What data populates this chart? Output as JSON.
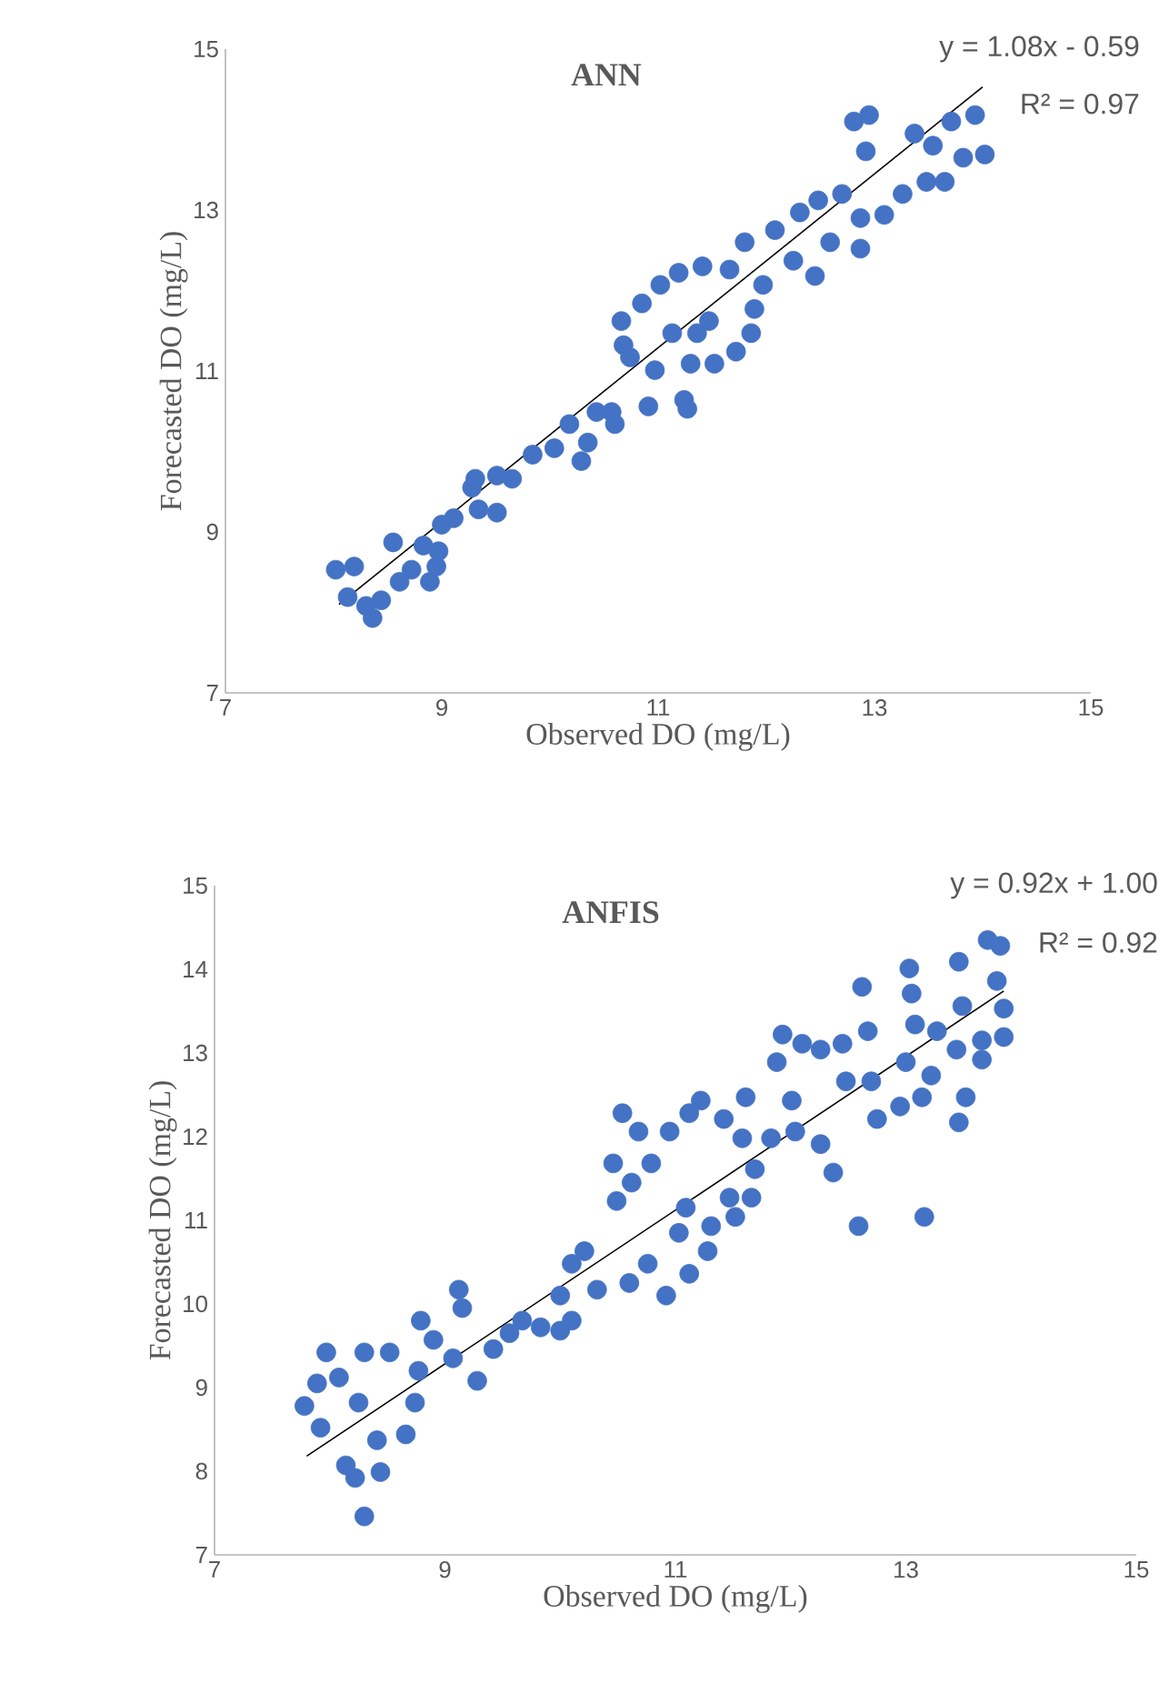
{
  "chart_data": [
    {
      "type": "scatter",
      "title": "ANN",
      "xlabel": "Observed DO (mg/L)",
      "ylabel": "Forecasted DO (mg/L)",
      "annotations": [
        "y = 1.08x - 0.59",
        "R² = 0.97"
      ],
      "xlim": [
        7,
        15
      ],
      "ylim": [
        7,
        15
      ],
      "xticks": [
        7,
        9,
        11,
        13,
        15
      ],
      "yticks": [
        7,
        9,
        11,
        13,
        15
      ],
      "series": [
        {
          "type": "scatter",
          "color": "#4472c4",
          "marker": "circle",
          "x": [
            8.02,
            8.19,
            8.13,
            8.36,
            8.3,
            8.44,
            8.55,
            8.61,
            8.72,
            8.89,
            8.97,
            8.95,
            8.83,
            9.0,
            9.11,
            9.31,
            9.28,
            9.51,
            9.51,
            9.34,
            9.65,
            9.84,
            10.04,
            10.18,
            10.29,
            10.35,
            10.43,
            10.6,
            10.57,
            10.66,
            10.68,
            10.74,
            10.85,
            10.91,
            11.02,
            10.97,
            11.13,
            11.19,
            11.24,
            11.27,
            11.3,
            11.36,
            11.41,
            11.47,
            11.52,
            11.66,
            11.72,
            11.8,
            11.86,
            11.89,
            11.97,
            12.08,
            12.25,
            12.31,
            12.45,
            12.48,
            12.59,
            12.7,
            12.87,
            12.81,
            12.92,
            12.95,
            12.87,
            13.09,
            13.26,
            13.37,
            13.48,
            13.65,
            13.54,
            13.71,
            13.82,
            13.93,
            14.02
          ],
          "values": [
            8.53,
            8.57,
            8.19,
            7.93,
            8.08,
            8.15,
            8.87,
            8.38,
            8.53,
            8.38,
            8.76,
            8.57,
            8.83,
            9.09,
            9.17,
            9.66,
            9.55,
            9.7,
            9.24,
            9.28,
            9.66,
            9.96,
            10.04,
            10.34,
            9.88,
            10.11,
            10.49,
            10.34,
            10.49,
            11.62,
            11.32,
            11.17,
            11.84,
            10.56,
            12.07,
            11.01,
            11.47,
            12.22,
            10.64,
            10.53,
            11.09,
            11.47,
            12.3,
            11.62,
            11.09,
            12.26,
            11.24,
            12.6,
            11.47,
            11.77,
            12.07,
            12.75,
            12.37,
            12.97,
            12.18,
            13.12,
            12.6,
            13.2,
            12.52,
            14.1,
            13.73,
            14.18,
            12.9,
            12.94,
            13.2,
            13.95,
            13.35,
            13.35,
            13.8,
            14.1,
            13.65,
            14.18,
            13.69
          ]
        },
        {
          "type": "line",
          "color": "#000000",
          "marker": "none",
          "x": [
            8.05,
            14.0
          ],
          "values": [
            8.1,
            14.53
          ]
        }
      ]
    },
    {
      "type": "scatter",
      "title": "ANFIS",
      "xlabel": "Observed DO (mg/L)",
      "ylabel": "Forecasted DO (mg/L)",
      "annotations": [
        "y = 0.92x + 1.00",
        "R² = 0.92"
      ],
      "xlim": [
        7,
        15
      ],
      "ylim": [
        7,
        15
      ],
      "xticks": [
        7,
        9,
        11,
        13,
        15
      ],
      "yticks": [
        7,
        8,
        9,
        10,
        11,
        12,
        13,
        14,
        15
      ],
      "series": [
        {
          "type": "scatter",
          "color": "#4472c4",
          "marker": "circle",
          "x": [
            7.78,
            7.97,
            7.89,
            7.92,
            8.14,
            8.22,
            8.3,
            8.44,
            8.08,
            8.3,
            8.25,
            8.41,
            8.52,
            8.66,
            8.74,
            8.77,
            8.79,
            8.9,
            9.07,
            9.12,
            9.15,
            9.28,
            9.42,
            9.56,
            9.67,
            9.83,
            10.0,
            10.0,
            10.1,
            10.1,
            10.21,
            10.32,
            10.49,
            10.46,
            10.54,
            10.6,
            10.62,
            10.68,
            10.76,
            10.79,
            10.92,
            10.95,
            11.03,
            11.09,
            11.12,
            11.12,
            11.22,
            11.31,
            11.28,
            11.42,
            11.47,
            11.52,
            11.58,
            11.61,
            11.66,
            11.69,
            11.83,
            11.93,
            11.88,
            12.01,
            12.04,
            12.1,
            12.26,
            12.26,
            12.37,
            12.45,
            12.48,
            12.59,
            12.62,
            12.67,
            12.7,
            12.75,
            12.95,
            13.0,
            13.03,
            13.05,
            13.08,
            13.14,
            13.16,
            13.22,
            13.27,
            13.46,
            13.44,
            13.46,
            13.52,
            13.49,
            13.66,
            13.66,
            13.71,
            13.82,
            13.79,
            13.85,
            13.85
          ],
          "values": [
            8.78,
            9.42,
            9.05,
            8.52,
            8.07,
            7.92,
            7.46,
            7.99,
            9.12,
            9.42,
            8.82,
            8.37,
            9.42,
            8.44,
            8.82,
            9.2,
            9.8,
            9.57,
            9.35,
            10.17,
            9.95,
            9.08,
            9.46,
            9.65,
            9.8,
            9.72,
            9.68,
            10.1,
            9.8,
            10.48,
            10.63,
            10.17,
            11.23,
            11.68,
            12.28,
            10.25,
            11.45,
            12.06,
            10.48,
            11.68,
            10.1,
            12.06,
            10.85,
            11.15,
            10.36,
            12.28,
            12.43,
            10.93,
            10.63,
            12.21,
            11.27,
            11.04,
            11.98,
            12.47,
            11.27,
            11.61,
            11.98,
            13.22,
            12.89,
            12.43,
            12.06,
            13.11,
            11.91,
            13.04,
            11.57,
            13.11,
            12.66,
            10.93,
            13.79,
            13.26,
            12.66,
            12.21,
            12.36,
            12.89,
            14.01,
            13.71,
            13.34,
            12.47,
            11.04,
            12.73,
            13.26,
            14.09,
            13.04,
            12.17,
            12.47,
            13.56,
            12.92,
            13.15,
            14.35,
            14.28,
            13.86,
            13.53,
            13.19
          ]
        },
        {
          "type": "line",
          "color": "#000000",
          "marker": "none",
          "x": [
            7.8,
            13.85
          ],
          "values": [
            8.18,
            13.74
          ]
        }
      ]
    }
  ]
}
